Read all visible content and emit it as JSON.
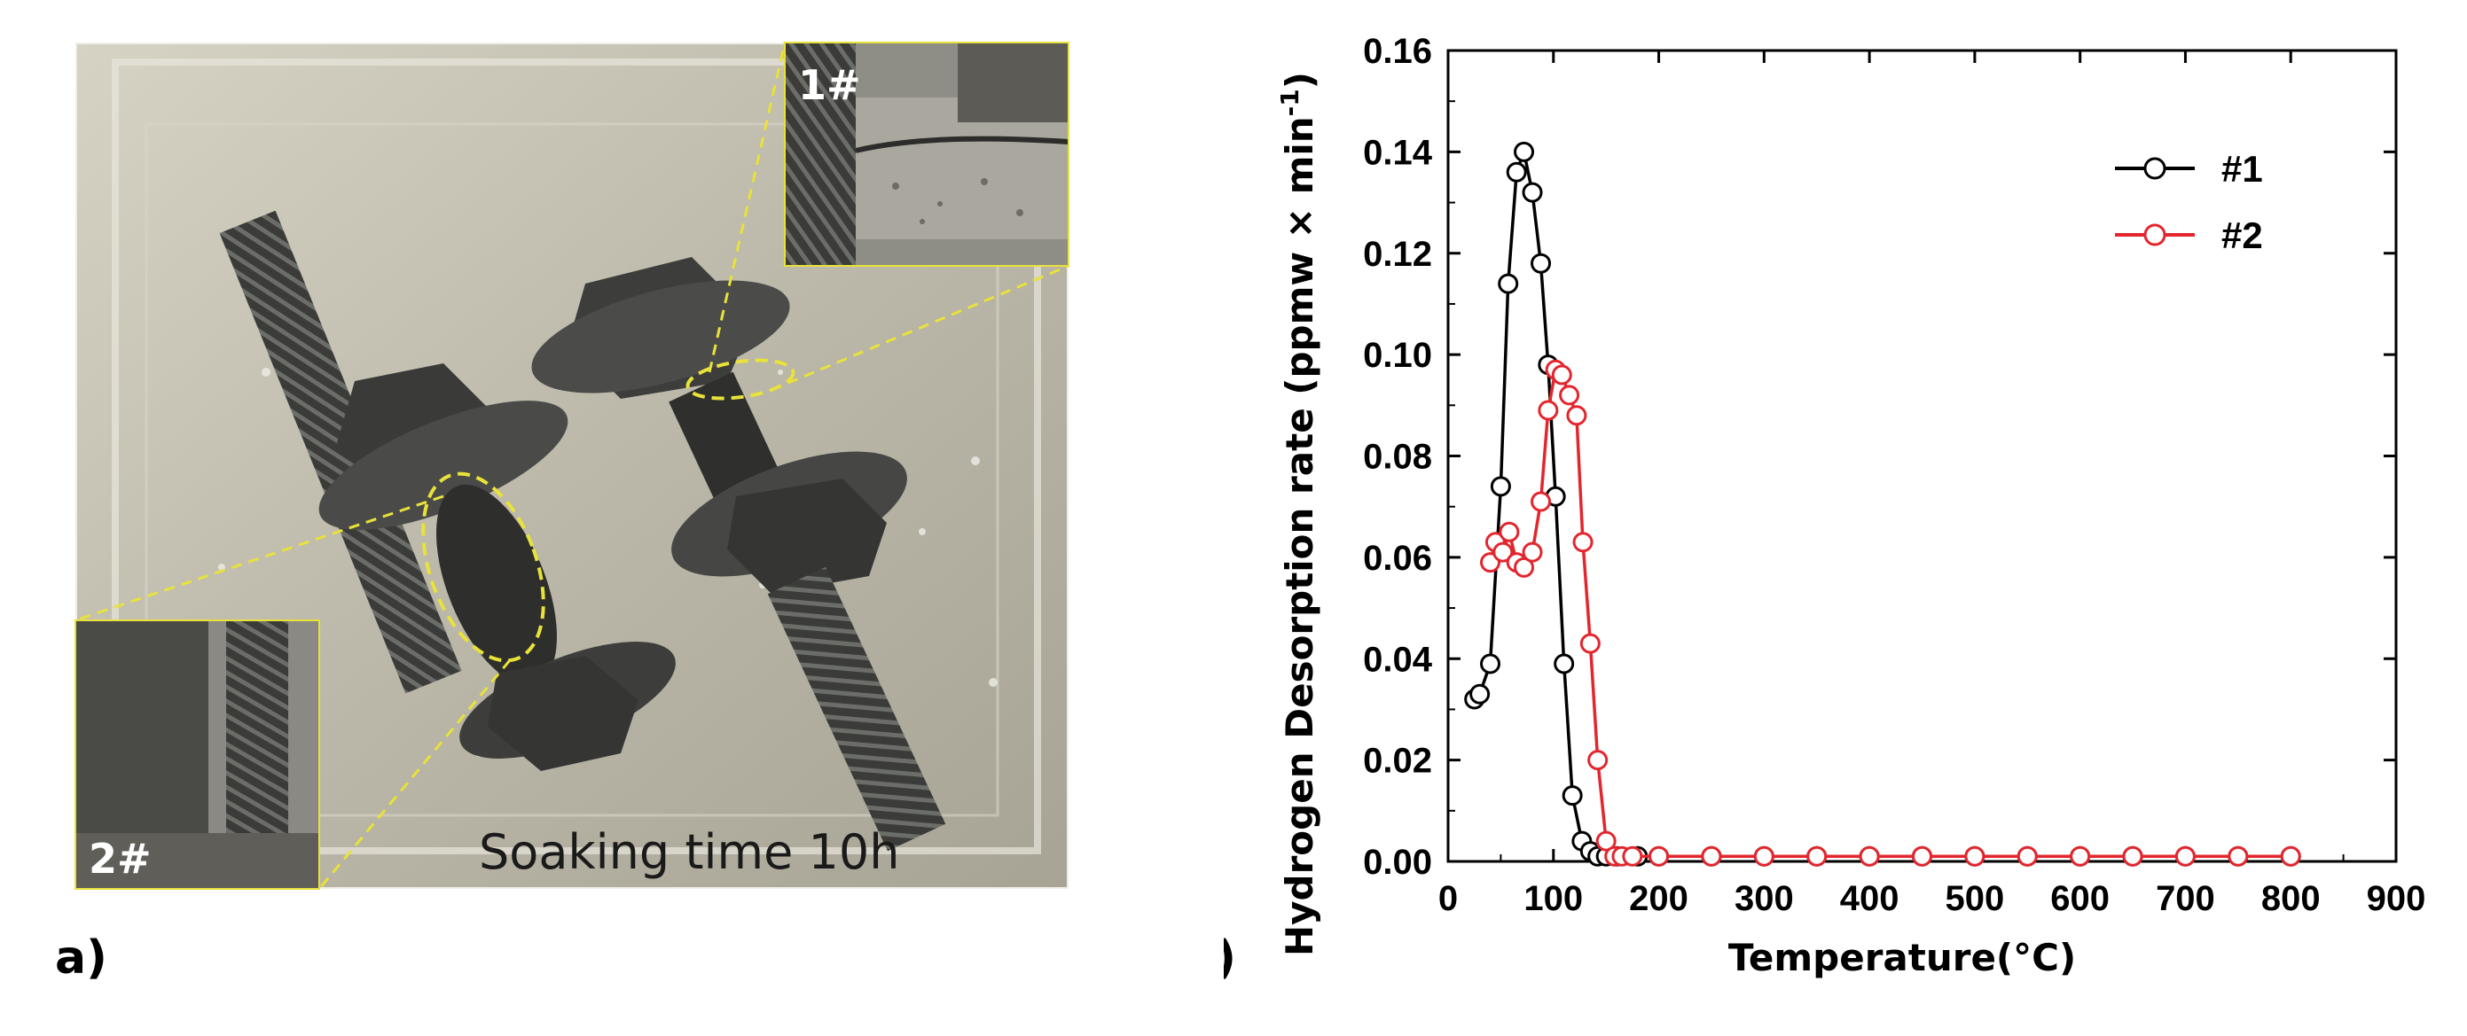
{
  "panel_a": {
    "label": "a)",
    "soaking_caption": "Soaking time 10h",
    "inset_top_label": "1#",
    "inset_bottom_label": "2#"
  },
  "panel_b": {
    "label": "b)"
  },
  "chart_data": {
    "type": "line",
    "title": "",
    "xlabel": "Temperature(°C)",
    "ylabel": "Hydrogen Desorption rate (ppmw × min-1)",
    "ylabel_main": "Hydrogen Desorption rate (ppmw × min",
    "ylabel_sup": "-1",
    "ylabel_close": ")",
    "xlim": [
      0,
      900
    ],
    "ylim": [
      0,
      0.16
    ],
    "x_ticks": [
      0,
      100,
      200,
      300,
      400,
      500,
      600,
      700,
      800,
      900
    ],
    "x_tick_labels": [
      "0",
      "100",
      "200",
      "300",
      "400",
      "500",
      "600",
      "700",
      "800",
      "900"
    ],
    "y_ticks": [
      0,
      0.02,
      0.04,
      0.06,
      0.08,
      0.1,
      0.12,
      0.14,
      0.16
    ],
    "y_tick_labels": [
      "0.00",
      "0.02",
      "0.04",
      "0.06",
      "0.08",
      "0.10",
      "0.12",
      "0.14",
      "0.16"
    ],
    "legend_position": "top-right",
    "grid": false,
    "series": [
      {
        "name": "#1",
        "color": "#000000",
        "x": [
          25,
          30,
          40,
          50,
          57,
          65,
          72,
          80,
          88,
          95,
          102,
          110,
          118,
          127,
          135,
          142,
          150,
          160,
          180,
          200,
          250,
          300,
          350,
          400,
          450,
          500,
          550,
          600,
          650,
          700,
          750,
          800
        ],
        "y": [
          0.032,
          0.033,
          0.039,
          0.074,
          0.114,
          0.136,
          0.14,
          0.132,
          0.118,
          0.098,
          0.072,
          0.039,
          0.013,
          0.004,
          0.002,
          0.001,
          0.001,
          0.001,
          0.001,
          0.001,
          0.001,
          0.001,
          0.001,
          0.001,
          0.001,
          0.001,
          0.001,
          0.001,
          0.001,
          0.001,
          0.001,
          0.001
        ]
      },
      {
        "name": "#2",
        "color": "#e3262e",
        "x": [
          40,
          45,
          52,
          58,
          65,
          72,
          80,
          88,
          95,
          102,
          108,
          115,
          122,
          128,
          135,
          142,
          150,
          158,
          165,
          175,
          200,
          250,
          300,
          350,
          400,
          450,
          500,
          550,
          600,
          650,
          700,
          750,
          800
        ],
        "y": [
          0.059,
          0.063,
          0.061,
          0.065,
          0.059,
          0.058,
          0.061,
          0.071,
          0.089,
          0.097,
          0.096,
          0.092,
          0.088,
          0.063,
          0.043,
          0.02,
          0.004,
          0.001,
          0.001,
          0.001,
          0.001,
          0.001,
          0.001,
          0.001,
          0.001,
          0.001,
          0.001,
          0.001,
          0.001,
          0.001,
          0.001,
          0.001,
          0.001
        ]
      }
    ]
  }
}
